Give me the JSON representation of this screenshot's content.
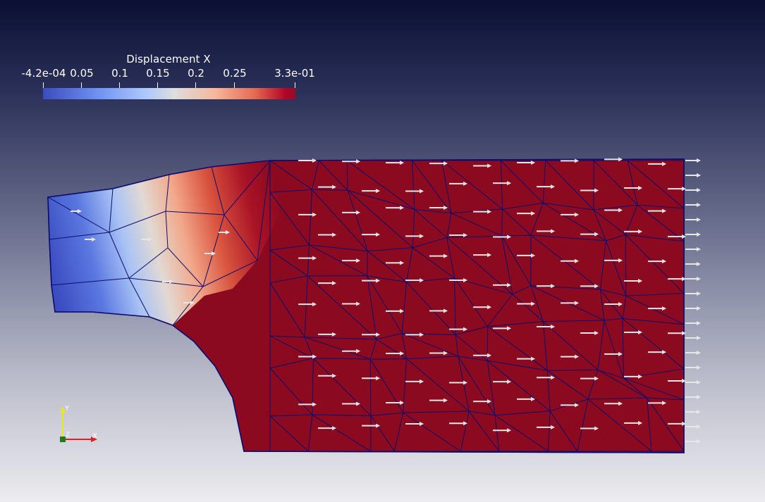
{
  "colorbar": {
    "title": "Displacement X",
    "tick_labels": [
      "-4.2e-04",
      "0.05",
      "0.1",
      "0.15",
      "0.2",
      "0.25",
      "3.3e-01"
    ]
  },
  "axes_triad": {
    "y_label": "Y",
    "z_label": "Z",
    "x_label": "X"
  },
  "colors": {
    "mesh_edge": "#0d0d6e",
    "high_displacement": "#8b0a1f",
    "low_displacement": "#3b4cc0",
    "glyph": "#e8e8e8",
    "x_axis": "#e02020",
    "y_axis": "#e8e820",
    "origin": "#1f7a1f"
  }
}
